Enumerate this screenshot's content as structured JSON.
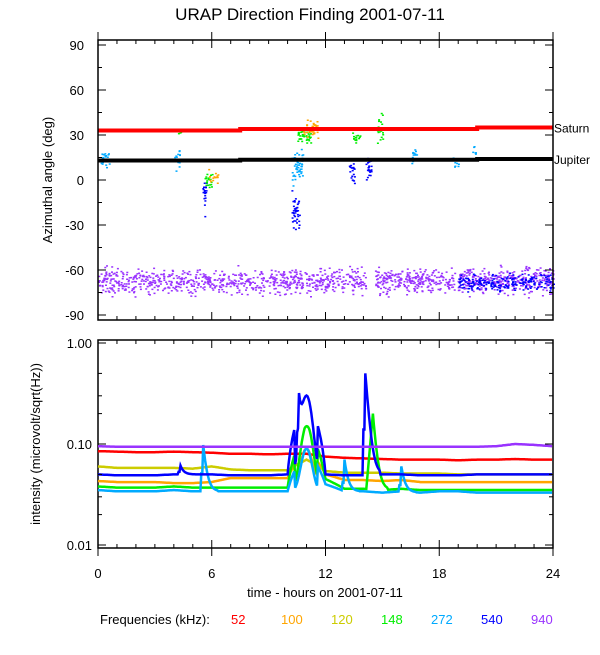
{
  "chart_data": [
    {
      "type": "scatter",
      "title": "URAP Direction Finding  2001-07-11",
      "ylabel": "Azimuthal angle (deg)",
      "xlabel": "",
      "xlim": [
        0,
        24
      ],
      "ylim": [
        -92,
        95
      ],
      "yticks": [
        "90",
        "60",
        "30",
        "0",
        "-30",
        "-60",
        "-90"
      ],
      "reference_lines": [
        {
          "name": "Saturn",
          "value_start": 33,
          "value_end": 35,
          "color": "#ff0000"
        },
        {
          "name": "Jupiter",
          "value_start": 13,
          "value_end": 14,
          "color": "#000000"
        }
      ],
      "clusters": [
        {
          "freq": "940",
          "x": [
            0,
            24
          ],
          "y": -67,
          "spread": 7,
          "count": 1400
        },
        {
          "freq": "540",
          "x": [
            19,
            24
          ],
          "y": -68,
          "spread": 5,
          "count": 200
        },
        {
          "freq": "272",
          "x": [
            0.1,
            0.6
          ],
          "y": 15,
          "spread": 5,
          "count": 25
        },
        {
          "freq": "272",
          "x": [
            4.0,
            4.3
          ],
          "y": 14,
          "spread": 6,
          "count": 15
        },
        {
          "freq": "148",
          "x": [
            4.2,
            4.4
          ],
          "y": 33,
          "spread": 3,
          "count": 8
        },
        {
          "freq": "540",
          "x": [
            5.5,
            5.7
          ],
          "y": -10,
          "spread": 10,
          "count": 20
        },
        {
          "freq": "148",
          "x": [
            5.6,
            6.0
          ],
          "y": 0,
          "spread": 4,
          "count": 20
        },
        {
          "freq": "100",
          "x": [
            5.8,
            6.3
          ],
          "y": 3,
          "spread": 4,
          "count": 15
        },
        {
          "freq": "540",
          "x": [
            10.2,
            10.6
          ],
          "y": -20,
          "spread": 12,
          "count": 40
        },
        {
          "freq": "272",
          "x": [
            10.2,
            10.8
          ],
          "y": 10,
          "spread": 10,
          "count": 50
        },
        {
          "freq": "148",
          "x": [
            10.5,
            11.2
          ],
          "y": 30,
          "spread": 5,
          "count": 40
        },
        {
          "freq": "100",
          "x": [
            10.8,
            11.6
          ],
          "y": 35,
          "spread": 5,
          "count": 40
        },
        {
          "freq": "540",
          "x": [
            13.2,
            13.5
          ],
          "y": 5,
          "spread": 6,
          "count": 20
        },
        {
          "freq": "148",
          "x": [
            13.4,
            13.8
          ],
          "y": 27,
          "spread": 3,
          "count": 15
        },
        {
          "freq": "540",
          "x": [
            14.1,
            14.4
          ],
          "y": 8,
          "spread": 8,
          "count": 25
        },
        {
          "freq": "148",
          "x": [
            14.7,
            15.0
          ],
          "y": 35,
          "spread": 8,
          "count": 20
        },
        {
          "freq": "272",
          "x": [
            16.5,
            16.8
          ],
          "y": 17,
          "spread": 5,
          "count": 12
        },
        {
          "freq": "272",
          "x": [
            18.7,
            19.0
          ],
          "y": 12,
          "spread": 3,
          "count": 8
        },
        {
          "freq": "272",
          "x": [
            19.6,
            19.9
          ],
          "y": 20,
          "spread": 3,
          "count": 6
        }
      ]
    },
    {
      "type": "line",
      "ylabel": "intensity (microvolt/sqrt(Hz))",
      "xlabel": "time - hours on 2001-07-11",
      "xlim": [
        0,
        24
      ],
      "ylim": [
        0.01,
        1.0
      ],
      "yscale": "log",
      "xticks": [
        "0",
        "6",
        "12",
        "18",
        "24"
      ],
      "yticks": [
        "1.00",
        "0.10",
        "0.01"
      ],
      "x": [
        0,
        1,
        2,
        3,
        4,
        5,
        6,
        7,
        8,
        9,
        10,
        11,
        12,
        13,
        14,
        15,
        16,
        17,
        18,
        19,
        20,
        21,
        22,
        23,
        24
      ],
      "series": [
        {
          "name": "52",
          "color": "#ff0000",
          "values": [
            0.085,
            0.084,
            0.083,
            0.083,
            0.084,
            0.083,
            0.082,
            0.08,
            0.08,
            0.079,
            0.08,
            0.08,
            0.075,
            0.073,
            0.072,
            0.071,
            0.07,
            0.07,
            0.07,
            0.069,
            0.07,
            0.07,
            0.071,
            0.07,
            0.07
          ]
        },
        {
          "name": "100",
          "color": "#ffa500",
          "values": [
            0.043,
            0.042,
            0.042,
            0.042,
            0.041,
            0.041,
            0.042,
            0.046,
            0.046,
            0.046,
            0.046,
            0.09,
            0.05,
            0.044,
            0.044,
            0.043,
            0.044,
            0.042,
            0.042,
            0.042,
            0.042,
            0.042,
            0.042,
            0.042,
            0.042
          ]
        },
        {
          "name": "120",
          "color": "#cccc00",
          "values": [
            0.06,
            0.058,
            0.058,
            0.058,
            0.058,
            0.057,
            0.06,
            0.056,
            0.055,
            0.055,
            0.055,
            0.07,
            0.054,
            0.052,
            0.052,
            0.052,
            0.051,
            0.051,
            0.051,
            0.05,
            0.05,
            0.05,
            0.05,
            0.05,
            0.05
          ]
        },
        {
          "name": "148",
          "color": "#00ee00",
          "values": [
            0.038,
            0.037,
            0.037,
            0.037,
            0.038,
            0.037,
            0.037,
            0.037,
            0.037,
            0.037,
            0.037,
            0.15,
            0.045,
            0.036,
            0.036,
            0.035,
            0.036,
            0.035,
            0.035,
            0.035,
            0.035,
            0.035,
            0.035,
            0.035,
            0.035
          ]
        },
        {
          "name": "272",
          "color": "#00aaff",
          "values": [
            0.035,
            0.034,
            0.034,
            0.034,
            0.035,
            0.034,
            0.034,
            0.034,
            0.034,
            0.034,
            0.034,
            0.09,
            0.04,
            0.034,
            0.034,
            0.033,
            0.034,
            0.033,
            0.034,
            0.034,
            0.033,
            0.033,
            0.033,
            0.033,
            0.033
          ]
        },
        {
          "name": "540",
          "color": "#0000ff",
          "values": [
            0.05,
            0.049,
            0.049,
            0.049,
            0.05,
            0.05,
            0.05,
            0.049,
            0.049,
            0.049,
            0.05,
            0.3,
            0.05,
            0.049,
            0.049,
            0.05,
            0.05,
            0.049,
            0.049,
            0.049,
            0.05,
            0.05,
            0.05,
            0.05,
            0.05
          ]
        },
        {
          "name": "940",
          "color": "#9933ff",
          "values": [
            0.095,
            0.094,
            0.094,
            0.094,
            0.094,
            0.094,
            0.094,
            0.094,
            0.094,
            0.094,
            0.094,
            0.094,
            0.094,
            0.094,
            0.094,
            0.094,
            0.094,
            0.094,
            0.094,
            0.094,
            0.094,
            0.095,
            0.1,
            0.098,
            0.095
          ]
        }
      ],
      "spikes": [
        {
          "freq": "540",
          "x": 4.3,
          "peak": 0.065
        },
        {
          "freq": "272",
          "x": 5.5,
          "peak": 0.12
        },
        {
          "freq": "540",
          "x": 10.6,
          "peak": 0.32
        },
        {
          "freq": "148",
          "x": 11.0,
          "peak": 0.15
        },
        {
          "freq": "272",
          "x": 13.0,
          "peak": 0.07
        },
        {
          "freq": "540",
          "x": 14.1,
          "peak": 0.5
        },
        {
          "freq": "148",
          "x": 14.5,
          "peak": 0.2
        },
        {
          "freq": "272",
          "x": 16.0,
          "peak": 0.06
        }
      ]
    }
  ],
  "legend": {
    "label": "Frequencies (kHz):",
    "items": [
      {
        "name": "52",
        "color": "#ff0000"
      },
      {
        "name": "100",
        "color": "#ffa500"
      },
      {
        "name": "120",
        "color": "#cccc00"
      },
      {
        "name": "148",
        "color": "#00ee00"
      },
      {
        "name": "272",
        "color": "#00aaff"
      },
      {
        "name": "540",
        "color": "#0000ff"
      },
      {
        "name": "940",
        "color": "#9933ff"
      }
    ]
  }
}
